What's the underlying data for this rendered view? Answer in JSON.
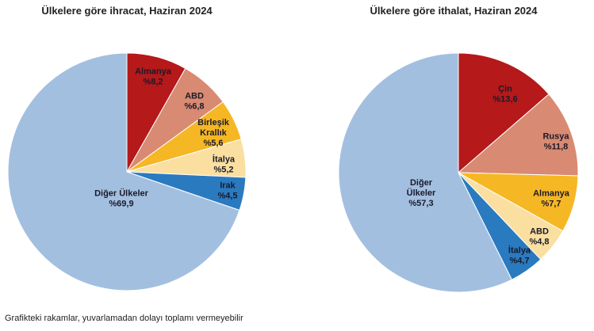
{
  "chart_data": [
    {
      "type": "pie",
      "title": "Ülkelere göre ihracat, Haziran 2024",
      "unit_prefix": "%",
      "slices": [
        {
          "label": [
            "Almanya"
          ],
          "value": 8.2,
          "display": "%8,2",
          "color": "#b5191a"
        },
        {
          "label": [
            "ABD"
          ],
          "value": 6.8,
          "display": "%6,8",
          "color": "#d98a72"
        },
        {
          "label": [
            "Birleşik",
            "Krallık"
          ],
          "value": 5.6,
          "display": "%5,6",
          "color": "#f5b724"
        },
        {
          "label": [
            "İtalya"
          ],
          "value": 5.2,
          "display": "%5,2",
          "color": "#fadfa0"
        },
        {
          "label": [
            "Irak"
          ],
          "value": 4.5,
          "display": "%4,5",
          "color": "#2a7ac0"
        },
        {
          "label": [
            "Diğer Ülkeler"
          ],
          "value": 69.9,
          "display": "%69,9",
          "color": "#a3bfe0"
        }
      ]
    },
    {
      "type": "pie",
      "title": "Ülkelere göre ithalat, Haziran 2024",
      "unit_prefix": "%",
      "slices": [
        {
          "label": [
            "Çin"
          ],
          "value": 13.6,
          "display": "%13,6",
          "color": "#b5191a"
        },
        {
          "label": [
            "Rusya"
          ],
          "value": 11.8,
          "display": "%11,8",
          "color": "#d98a72"
        },
        {
          "label": [
            "Almanya"
          ],
          "value": 7.7,
          "display": "%7,7",
          "color": "#f5b724"
        },
        {
          "label": [
            "ABD"
          ],
          "value": 4.8,
          "display": "%4,8",
          "color": "#fadfa0"
        },
        {
          "label": [
            "İtalya"
          ],
          "value": 4.7,
          "display": "%4,7",
          "color": "#2a7ac0"
        },
        {
          "label": [
            "Diğer",
            "Ülkeler"
          ],
          "value": 57.3,
          "display": "%57,3",
          "color": "#a3bfe0"
        }
      ]
    }
  ],
  "footnote": "Grafikteki rakamlar, yuvarlamadan dolayı toplamı vermeyebilir"
}
